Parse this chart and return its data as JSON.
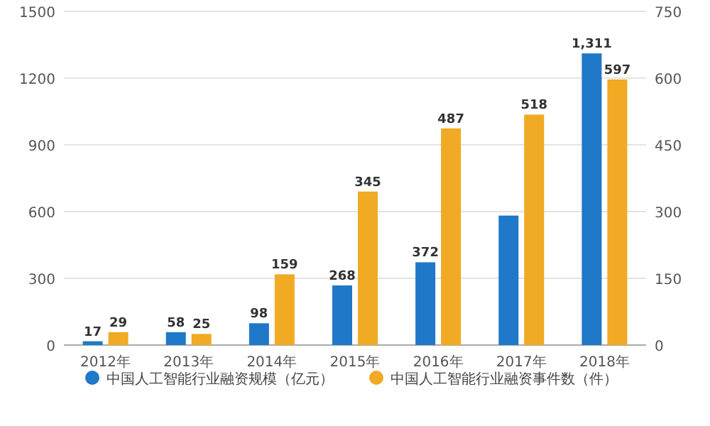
{
  "chart_data": {
    "type": "bar",
    "categories": [
      "2012年",
      "2013年",
      "2014年",
      "2015年",
      "2016年",
      "2017年",
      "2018年"
    ],
    "series": [
      {
        "name": "中国人工智能行业融资规模（亿元）",
        "color": "#1f78c8",
        "values": [
          17,
          58,
          98,
          268,
          372,
          582,
          1311
        ],
        "value_labels": [
          "17",
          "58",
          "98",
          "268",
          "372",
          null,
          "1,311"
        ]
      },
      {
        "name": "中国人工智能行业融资事件数（件）",
        "color": "#f0aa24",
        "axis": "y2",
        "values": [
          29,
          25,
          159,
          345,
          487,
          518,
          597
        ],
        "value_labels": [
          "29",
          "25",
          "159",
          "345",
          "487",
          "518",
          "597"
        ]
      }
    ],
    "ylim": [
      0,
      1500
    ],
    "yticks": [
      0,
      300,
      600,
      900,
      1200,
      1500
    ],
    "y2lim": [
      0,
      750
    ],
    "y2ticks": [
      0,
      150,
      300,
      450,
      600,
      750
    ],
    "grid": "y",
    "legend": "bottom"
  }
}
